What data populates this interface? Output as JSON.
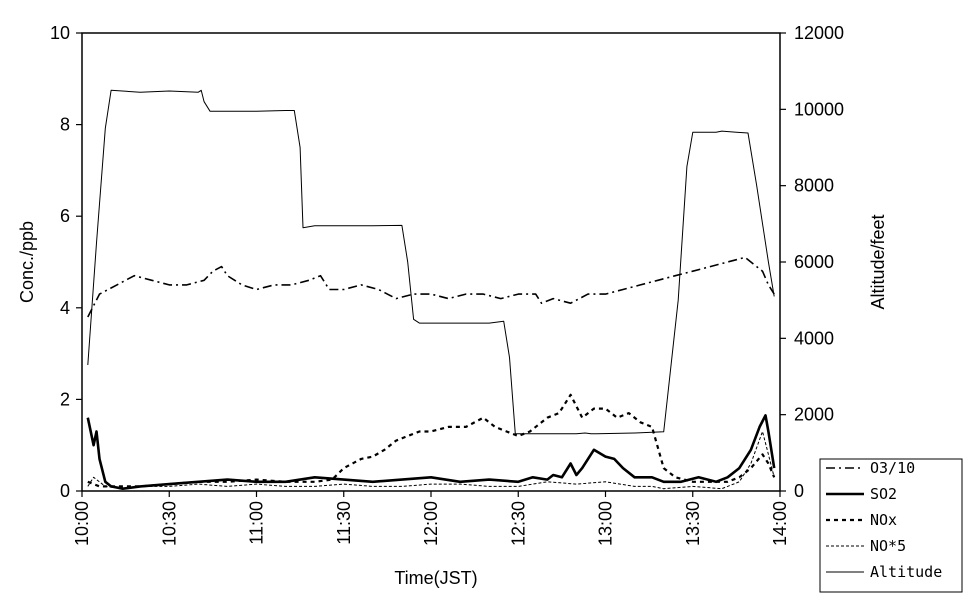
{
  "chart_data": {
    "type": "line",
    "xlabel": "Time(JST)",
    "ylabel": "Conc./ppb",
    "y2label": "Altitude/feet",
    "x_ticks": [
      "10:00",
      "10:30",
      "11:00",
      "11:30",
      "12:00",
      "12:30",
      "13:00",
      "13:30",
      "14:00"
    ],
    "xlim_minutes": [
      0,
      240
    ],
    "ylim": [
      0,
      10
    ],
    "y_ticks": [
      "0",
      "2",
      "4",
      "6",
      "8",
      "10"
    ],
    "y2lim": [
      0,
      12000
    ],
    "y2_ticks": [
      "0",
      "2000",
      "4000",
      "6000",
      "8000",
      "10000",
      "12000"
    ],
    "grid": false,
    "legend_position": "bottom-right outside",
    "series": [
      {
        "name": "O3/10",
        "axis": "left",
        "style": "dash-dot",
        "color": "#000000",
        "x": [
          2,
          6,
          12,
          18,
          24,
          30,
          36,
          42,
          45,
          48,
          50,
          55,
          60,
          66,
          72,
          78,
          82,
          85,
          90,
          96,
          102,
          108,
          114,
          120,
          126,
          132,
          138,
          144,
          150,
          156,
          158,
          162,
          168,
          174,
          180,
          186,
          192,
          198,
          204,
          210,
          216,
          222,
          228,
          234,
          236,
          238
        ],
        "y": [
          3.8,
          4.3,
          4.5,
          4.7,
          4.6,
          4.5,
          4.5,
          4.6,
          4.8,
          4.9,
          4.7,
          4.5,
          4.4,
          4.5,
          4.5,
          4.6,
          4.7,
          4.4,
          4.4,
          4.5,
          4.4,
          4.2,
          4.3,
          4.3,
          4.2,
          4.3,
          4.3,
          4.2,
          4.3,
          4.3,
          4.1,
          4.2,
          4.1,
          4.3,
          4.3,
          4.4,
          4.5,
          4.6,
          4.7,
          4.8,
          4.9,
          5.0,
          5.1,
          4.8,
          4.5,
          4.3
        ]
      },
      {
        "name": "SO2",
        "axis": "left",
        "style": "solid-thick",
        "color": "#000000",
        "x": [
          2,
          4,
          5,
          6,
          8,
          10,
          14,
          20,
          30,
          40,
          50,
          60,
          70,
          80,
          90,
          100,
          110,
          120,
          130,
          140,
          150,
          155,
          160,
          162,
          165,
          168,
          170,
          172,
          176,
          180,
          183,
          186,
          190,
          196,
          200,
          206,
          212,
          218,
          222,
          226,
          230,
          233,
          235,
          236,
          238
        ],
        "y": [
          1.6,
          1.0,
          1.3,
          0.7,
          0.2,
          0.1,
          0.05,
          0.1,
          0.15,
          0.2,
          0.25,
          0.2,
          0.2,
          0.3,
          0.25,
          0.2,
          0.25,
          0.3,
          0.2,
          0.25,
          0.2,
          0.3,
          0.25,
          0.35,
          0.3,
          0.6,
          0.35,
          0.5,
          0.9,
          0.75,
          0.7,
          0.5,
          0.3,
          0.3,
          0.2,
          0.2,
          0.3,
          0.2,
          0.3,
          0.5,
          0.9,
          1.4,
          1.65,
          1.3,
          0.5
        ]
      },
      {
        "name": "NOx",
        "axis": "left",
        "style": "dotted-thick",
        "color": "#000000",
        "x": [
          2,
          6,
          12,
          20,
          30,
          40,
          50,
          60,
          70,
          80,
          86,
          90,
          96,
          100,
          104,
          108,
          112,
          116,
          120,
          126,
          132,
          138,
          142,
          146,
          150,
          154,
          160,
          164,
          168,
          172,
          176,
          180,
          184,
          188,
          192,
          196,
          200,
          204,
          210,
          216,
          222,
          226,
          230,
          234,
          236,
          238
        ],
        "y": [
          0.2,
          0.1,
          0.1,
          0.1,
          0.15,
          0.2,
          0.2,
          0.25,
          0.2,
          0.2,
          0.25,
          0.5,
          0.7,
          0.75,
          0.9,
          1.1,
          1.2,
          1.3,
          1.3,
          1.4,
          1.4,
          1.6,
          1.4,
          1.3,
          1.2,
          1.3,
          1.6,
          1.7,
          2.1,
          1.6,
          1.8,
          1.8,
          1.6,
          1.7,
          1.5,
          1.4,
          0.5,
          0.3,
          0.2,
          0.2,
          0.2,
          0.3,
          0.5,
          0.8,
          0.6,
          0.3
        ]
      },
      {
        "name": "NO*5",
        "axis": "left",
        "style": "dashed-thin",
        "color": "#000000",
        "x": [
          2,
          4,
          8,
          14,
          20,
          30,
          40,
          50,
          60,
          70,
          80,
          90,
          100,
          110,
          120,
          130,
          140,
          150,
          160,
          170,
          180,
          190,
          196,
          200,
          210,
          220,
          226,
          230,
          234,
          236,
          238
        ],
        "y": [
          0.1,
          0.3,
          0.1,
          0.05,
          0.1,
          0.1,
          0.15,
          0.1,
          0.15,
          0.1,
          0.1,
          0.15,
          0.1,
          0.1,
          0.15,
          0.15,
          0.1,
          0.1,
          0.2,
          0.15,
          0.2,
          0.1,
          0.1,
          0.05,
          0.1,
          0.05,
          0.2,
          0.6,
          1.3,
          0.8,
          0.3
        ]
      },
      {
        "name": "Altitude",
        "axis": "right",
        "style": "solid-thin",
        "color": "#000000",
        "x": [
          2,
          5,
          8,
          10,
          20,
          30,
          40,
          41,
          42,
          44,
          60,
          70,
          73,
          75,
          76,
          80,
          100,
          110,
          112,
          114,
          116,
          140,
          145,
          147,
          149,
          160,
          170,
          173,
          175,
          177,
          190,
          200,
          205,
          208,
          210,
          218,
          220,
          225,
          229,
          232,
          236,
          238
        ],
        "y": [
          3300,
          6500,
          9500,
          10500,
          10450,
          10480,
          10450,
          10500,
          10200,
          9950,
          9950,
          9970,
          9970,
          9000,
          6900,
          6950,
          6950,
          6960,
          6000,
          4500,
          4400,
          4400,
          4450,
          3500,
          1500,
          1500,
          1500,
          1520,
          1500,
          1500,
          1520,
          1550,
          5000,
          8500,
          9400,
          9400,
          9430,
          9400,
          9380,
          8000,
          6000,
          5100
        ]
      }
    ],
    "legend": [
      "O3/10",
      "SO2",
      "NOx",
      "NO*5",
      "Altitude"
    ]
  }
}
